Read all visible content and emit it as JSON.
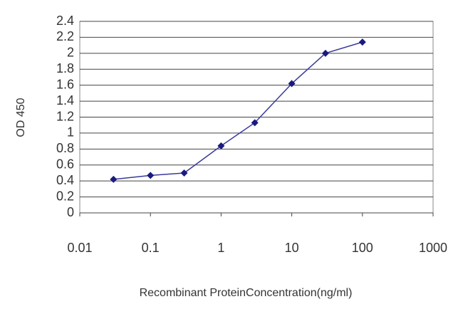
{
  "chart_data": {
    "type": "line",
    "x_label": "Recombinant ProteinConcentration(ng/ml)",
    "y_label": "OD 450",
    "x": [
      0.03,
      0.1,
      0.3,
      1,
      3,
      10,
      30,
      100
    ],
    "values": [
      0.42,
      0.47,
      0.5,
      0.84,
      1.13,
      1.62,
      2.0,
      2.14
    ],
    "color": "#3a3a9c",
    "marker_color": "#1a1a80",
    "xscale": "log",
    "xlim": [
      0.01,
      1000
    ],
    "xticks": [
      0.01,
      0.1,
      1,
      10,
      100,
      1000
    ],
    "ylim": [
      0,
      2.4
    ],
    "yticks": [
      0,
      0.2,
      0.4,
      0.6,
      0.8,
      1,
      1.2,
      1.4,
      1.6,
      1.8,
      2,
      2.2,
      2.4
    ],
    "grid": true
  }
}
